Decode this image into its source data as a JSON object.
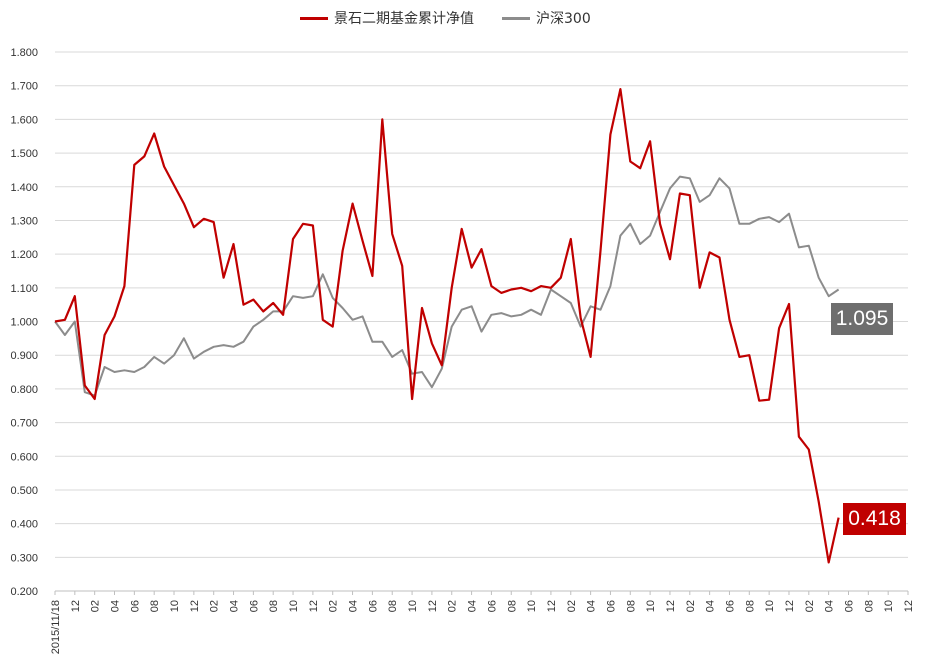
{
  "chart_data": {
    "type": "line",
    "title": "",
    "xlabel": "",
    "ylabel": "",
    "ylim": [
      0.2,
      1.8
    ],
    "y_ticks": [
      "0.200",
      "0.300",
      "0.400",
      "0.500",
      "0.600",
      "0.700",
      "0.800",
      "0.900",
      "1.000",
      "1.100",
      "1.200",
      "1.300",
      "1.400",
      "1.500",
      "1.600",
      "1.700",
      "1.800"
    ],
    "x_ticks": [
      "2015/11/18",
      "12",
      "02",
      "04",
      "06",
      "08",
      "10",
      "12",
      "02",
      "04",
      "06",
      "08",
      "10",
      "12",
      "02",
      "04",
      "06",
      "08",
      "10",
      "12",
      "02",
      "04",
      "06",
      "08",
      "10",
      "12",
      "02",
      "04",
      "06",
      "08",
      "10",
      "12",
      "02",
      "04",
      "06",
      "08",
      "10",
      "12",
      "02",
      "04",
      "06",
      "08",
      "10",
      "12"
    ],
    "grid": true,
    "legend_position": "top",
    "series": [
      {
        "name": "景石二期基金累计净值",
        "color": "#c00000",
        "values": [
          1.0,
          1.005,
          1.075,
          0.81,
          0.77,
          0.96,
          1.015,
          1.105,
          1.465,
          1.49,
          1.558,
          1.46,
          1.405,
          1.35,
          1.28,
          1.305,
          1.295,
          1.13,
          1.23,
          1.05,
          1.065,
          1.03,
          1.055,
          1.02,
          1.245,
          1.29,
          1.285,
          1.005,
          0.985,
          1.21,
          1.35,
          1.24,
          1.135,
          1.6,
          1.26,
          1.165,
          0.77,
          1.04,
          0.935,
          0.87,
          1.1,
          1.275,
          1.16,
          1.215,
          1.105,
          1.085,
          1.095,
          1.1,
          1.09,
          1.105,
          1.1,
          1.13,
          1.245,
          1.01,
          0.895,
          1.21,
          1.555,
          1.69,
          1.475,
          1.455,
          1.535,
          1.29,
          1.185,
          1.38,
          1.375,
          1.1,
          1.205,
          1.19,
          1.005,
          0.895,
          0.9,
          0.765,
          0.768,
          0.98,
          1.052,
          0.658,
          0.62,
          0.465,
          0.285,
          0.418
        ],
        "last_label": "0.418"
      },
      {
        "name": "沪深300",
        "color": "#8c8c8c",
        "values": [
          1.0,
          0.96,
          1.0,
          0.79,
          0.78,
          0.865,
          0.85,
          0.855,
          0.85,
          0.865,
          0.895,
          0.875,
          0.9,
          0.95,
          0.89,
          0.91,
          0.925,
          0.93,
          0.925,
          0.94,
          0.985,
          1.005,
          1.03,
          1.03,
          1.075,
          1.07,
          1.075,
          1.14,
          1.07,
          1.04,
          1.005,
          1.015,
          0.94,
          0.94,
          0.895,
          0.915,
          0.845,
          0.85,
          0.805,
          0.86,
          0.985,
          1.035,
          1.045,
          0.97,
          1.02,
          1.025,
          1.015,
          1.02,
          1.035,
          1.02,
          1.095,
          1.075,
          1.055,
          0.985,
          1.045,
          1.035,
          1.105,
          1.255,
          1.29,
          1.23,
          1.255,
          1.325,
          1.395,
          1.43,
          1.425,
          1.355,
          1.375,
          1.425,
          1.395,
          1.29,
          1.29,
          1.305,
          1.31,
          1.295,
          1.32,
          1.22,
          1.225,
          1.13,
          1.075,
          1.095
        ],
        "last_label": "1.095"
      }
    ]
  },
  "colors": {
    "fund": "#c00000",
    "index": "#8c8c8c",
    "index_badge_bg": "#6e6e6e",
    "grid": "#d9d9d9"
  }
}
